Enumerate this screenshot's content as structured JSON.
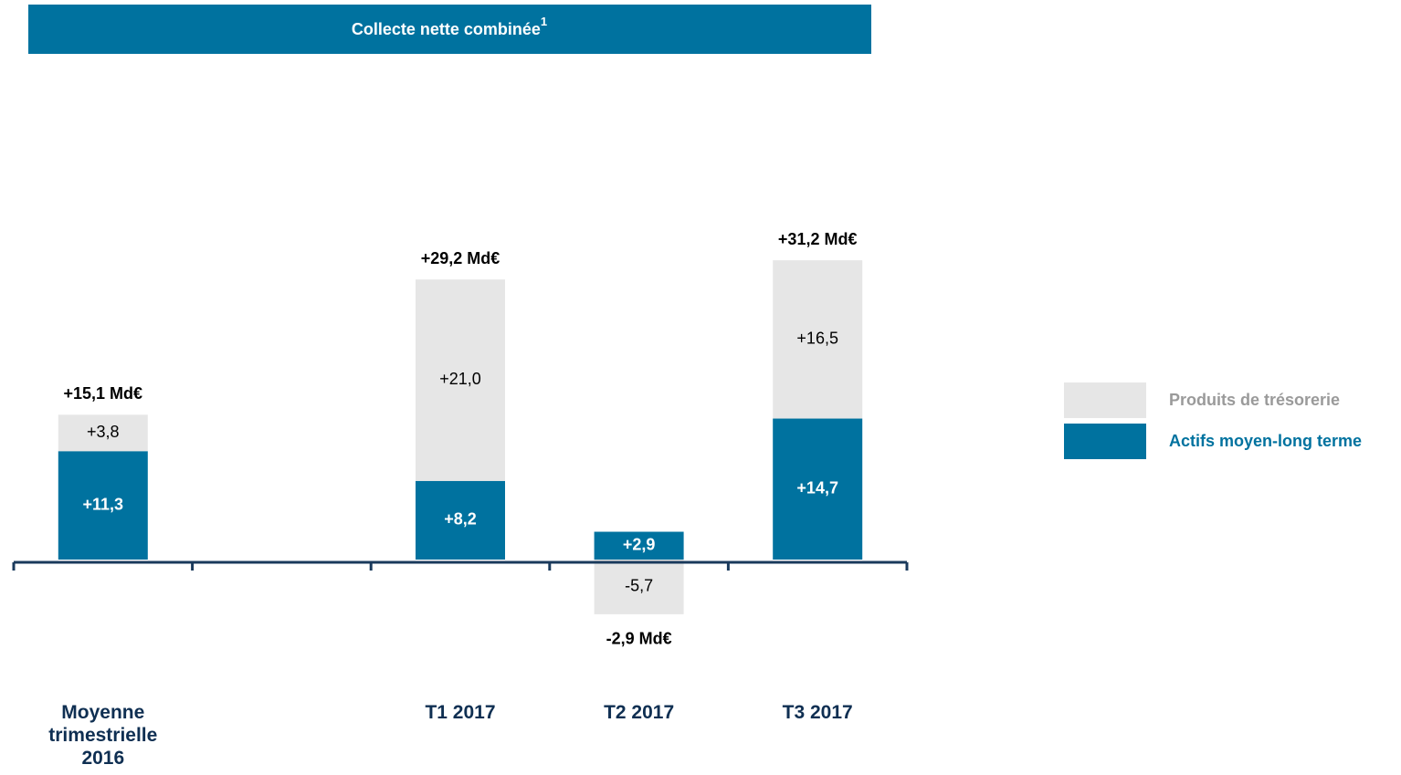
{
  "chart_data": {
    "type": "stacked_bar",
    "title": "Collecte nette  combinée",
    "title_superscript": "1",
    "categories": [
      "Moyenne trimestrielle 2016",
      null,
      "T1 2017",
      "T2 2017",
      "T3 2017"
    ],
    "series": [
      {
        "name": "Actifs moyen-long terme",
        "color": "#00729f",
        "values": [
          11.3,
          null,
          8.2,
          2.9,
          14.7
        ],
        "value_labels": [
          "+11,3",
          null,
          "+8,2",
          "+2,9",
          "+14,7"
        ]
      },
      {
        "name": "Produits de trésorerie",
        "color": "#e6e6e6",
        "values": [
          3.8,
          null,
          21.0,
          -5.7,
          16.5
        ],
        "value_labels": [
          "+3,8",
          null,
          "+21,0",
          "-5,7",
          "+16,5"
        ]
      }
    ],
    "totals": [
      15.1,
      null,
      29.2,
      -2.9,
      31.2
    ],
    "total_labels": [
      "+15,1 Md€",
      null,
      "+29,2 Md€",
      "-2,9 Md€",
      "+31,2 Md€"
    ],
    "legend": "right"
  }
}
